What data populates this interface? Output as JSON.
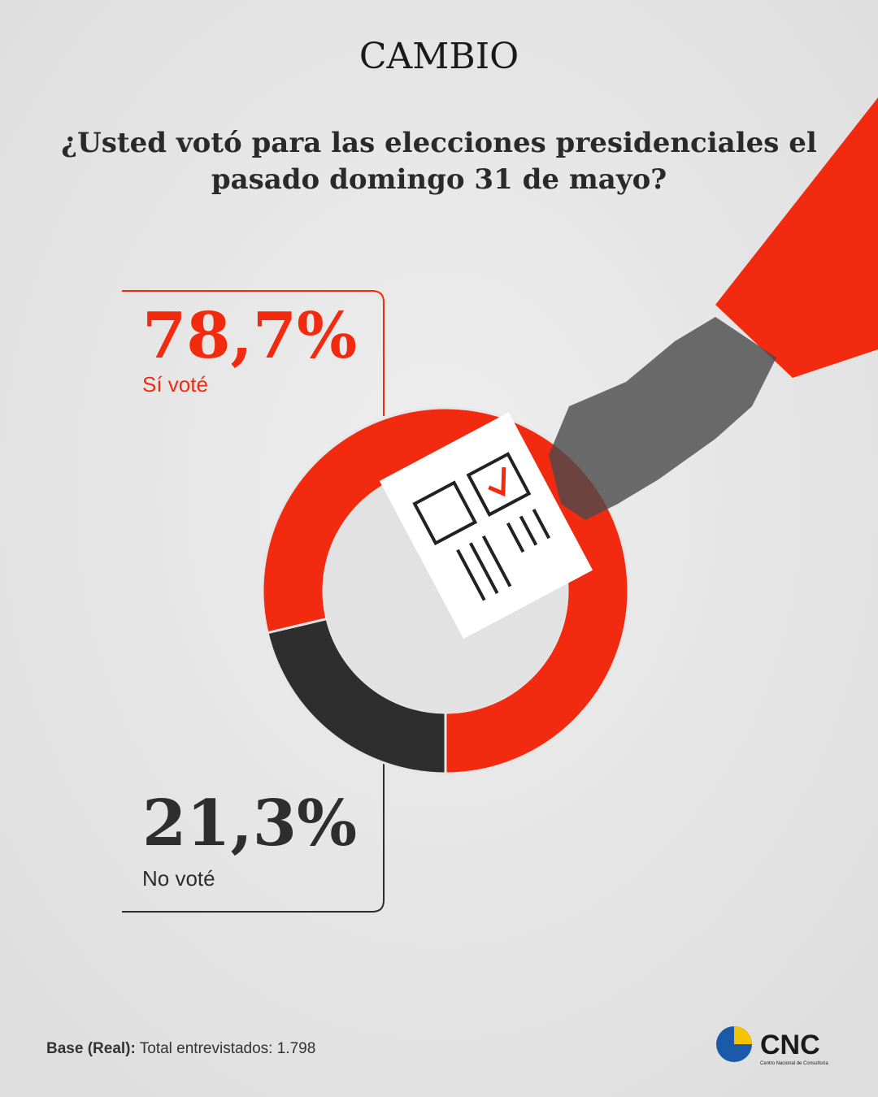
{
  "brand": "CAMBIO",
  "chart_data": {
    "type": "donut",
    "title": "¿Usted votó para las elecciones presidenciales el pasado domingo 31 de mayo?",
    "categories": [
      "Sí voté",
      "No voté"
    ],
    "values": [
      78.7,
      21.3
    ],
    "value_labels": [
      "78,7%",
      "21,3%"
    ],
    "colors": [
      "#f22a0f",
      "#2e2e2e"
    ]
  },
  "footer": {
    "label": "Base (Real):",
    "text": "Total entrevistados: 1.798"
  },
  "logo": {
    "name": "CNC",
    "subtitle": "Centro Nacional de Consultoría"
  }
}
